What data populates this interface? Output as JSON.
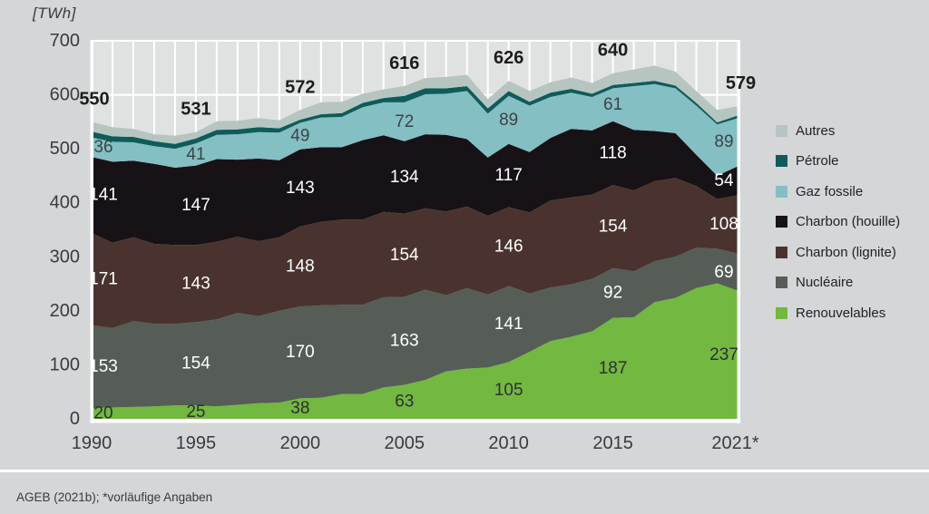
{
  "title_unit": "[TWh]",
  "footer": {
    "source": "AGEB (2021b); *vorläufige Angaben"
  },
  "colors": {
    "page_bg": "#d4d6d8",
    "plot_bg": "#e0e2e2",
    "grid": "#ffffff",
    "axis_text": "#3b3b3b",
    "total_text": "#1c1c1c",
    "separator": "#ffffff",
    "legend_text": "#222222"
  },
  "legend": {
    "items": [
      {
        "label": "Autres",
        "color": "#b7c5c0"
      },
      {
        "label": "Pétrole",
        "color": "#0e5c59"
      },
      {
        "label": "Gaz fossile",
        "color": "#84bfc4"
      },
      {
        "label": "Charbon (houille)",
        "color": "#171216"
      },
      {
        "label": "Charbon (lignite)",
        "color": "#4a332e"
      },
      {
        "label": "Nucléaire",
        "color": "#565d57"
      },
      {
        "label": "Renouvelables",
        "color": "#72b841"
      }
    ]
  },
  "chart_data": {
    "type": "area",
    "stacked": true,
    "unit": "TWh",
    "ylim": [
      0,
      700
    ],
    "y_ticks": [
      0,
      100,
      200,
      300,
      400,
      500,
      600,
      700
    ],
    "x_years": [
      1990,
      1991,
      1992,
      1993,
      1994,
      1995,
      1996,
      1997,
      1998,
      1999,
      2000,
      2001,
      2002,
      2003,
      2004,
      2005,
      2006,
      2007,
      2008,
      2009,
      2010,
      2011,
      2012,
      2013,
      2014,
      2015,
      2016,
      2017,
      2018,
      2019,
      2020,
      2021
    ],
    "x_ticks": [
      {
        "year": 1990,
        "label": "1990"
      },
      {
        "year": 1995,
        "label": "1995"
      },
      {
        "year": 2000,
        "label": "2000"
      },
      {
        "year": 2005,
        "label": "2005"
      },
      {
        "year": 2010,
        "label": "2010"
      },
      {
        "year": 2015,
        "label": "2015"
      },
      {
        "year": 2021,
        "label": "2021*"
      }
    ],
    "series": [
      {
        "name": "Renouvelables",
        "color": "#72b841",
        "label_color": "#2f2f2f",
        "values": [
          20,
          21,
          22,
          23,
          25,
          25,
          23,
          26,
          29,
          30,
          38,
          39,
          46,
          46,
          58,
          63,
          72,
          88,
          93,
          95,
          105,
          124,
          144,
          152,
          162,
          187,
          188,
          216,
          224,
          242,
          251,
          237
        ]
      },
      {
        "name": "Nucléaire",
        "color": "#565d57",
        "label_color": "#ffffff",
        "values": [
          153,
          147,
          159,
          153,
          151,
          154,
          161,
          170,
          161,
          170,
          170,
          171,
          165,
          165,
          167,
          163,
          167,
          141,
          149,
          135,
          141,
          108,
          99,
          97,
          97,
          92,
          85,
          76,
          76,
          75,
          64,
          69
        ]
      },
      {
        "name": "Charbon (lignite)",
        "color": "#4a332e",
        "label_color": "#ffffff",
        "values": [
          171,
          158,
          155,
          148,
          146,
          143,
          144,
          141,
          139,
          136,
          148,
          155,
          158,
          158,
          158,
          154,
          151,
          155,
          151,
          146,
          146,
          150,
          161,
          161,
          156,
          154,
          150,
          148,
          146,
          114,
          92,
          108
        ]
      },
      {
        "name": "Charbon (houille)",
        "color": "#171216",
        "label_color": "#ffffff",
        "values": [
          141,
          150,
          142,
          148,
          143,
          147,
          153,
          143,
          153,
          143,
          143,
          138,
          134,
          147,
          142,
          134,
          137,
          142,
          125,
          108,
          117,
          112,
          116,
          127,
          119,
          118,
          112,
          93,
          83,
          58,
          43,
          54
        ]
      },
      {
        "name": "Gaz fossile",
        "color": "#84bfc4",
        "label_color": "#3c4347",
        "values": [
          36,
          37,
          34,
          33,
          35,
          41,
          45,
          47,
          49,
          51,
          49,
          55,
          56,
          61,
          61,
          72,
          74,
          76,
          89,
          81,
          89,
          86,
          76,
          67,
          62,
          61,
          81,
          87,
          83,
          91,
          95,
          89
        ]
      },
      {
        "name": "Pétrole",
        "color": "#0e5c59",
        "label_color": "#ffffff",
        "values": [
          11,
          10,
          10,
          9,
          9,
          9,
          9,
          9,
          9,
          8,
          6,
          6,
          7,
          8,
          8,
          12,
          11,
          10,
          9,
          10,
          9,
          7,
          8,
          7,
          6,
          6,
          6,
          6,
          5,
          5,
          4,
          5
        ]
      },
      {
        "name": "Autres",
        "color": "#b7c5c0",
        "label_color": "#3c4347",
        "values": [
          18,
          17,
          15,
          13,
          15,
          12,
          16,
          16,
          17,
          15,
          18,
          22,
          21,
          17,
          16,
          18,
          19,
          21,
          21,
          17,
          19,
          20,
          19,
          21,
          20,
          22,
          25,
          28,
          26,
          22,
          23,
          17
        ]
      }
    ],
    "label_years": [
      1990,
      1995,
      2000,
      2005,
      2010,
      2015,
      2021
    ],
    "value_labels": {
      "Renouvelables": [
        20,
        25,
        38,
        63,
        105,
        187,
        237
      ],
      "Nucléaire": [
        153,
        154,
        170,
        163,
        141,
        92,
        69
      ],
      "Charbon (lignite)": [
        171,
        143,
        148,
        154,
        146,
        154,
        108
      ],
      "Charbon (houille)": [
        141,
        147,
        143,
        134,
        117,
        118,
        54
      ],
      "Gaz fossile": [
        36,
        41,
        49,
        72,
        89,
        61,
        89
      ]
    },
    "totals": {
      "years": [
        1990,
        1995,
        2000,
        2005,
        2010,
        2015,
        2021
      ],
      "values": [
        550,
        531,
        572,
        616,
        626,
        640,
        579
      ]
    }
  }
}
